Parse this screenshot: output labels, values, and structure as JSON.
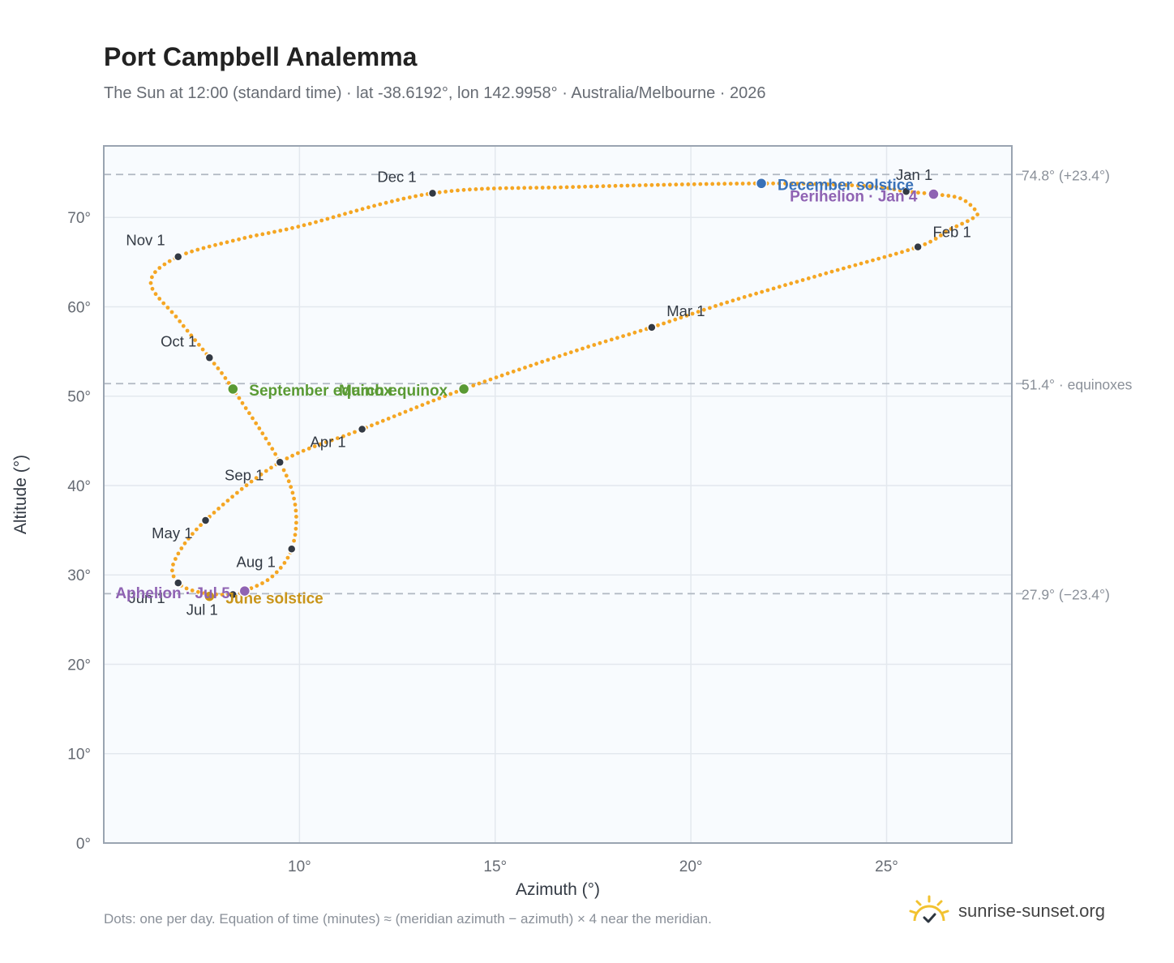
{
  "title": "Port Campbell Analemma",
  "subtitle": "The Sun at 12:00 (standard time) · lat -38.6192°, lon 142.9958° · Australia/Melbourne · 2026",
  "footnote": "Dots: one per day. Equation of time (minutes) ≈ (meridian azimuth − azimuth) × 4 near the meridian.",
  "brand": {
    "name": "sunrise-sunset.org",
    "logo_icon": "sun-check-icon"
  },
  "colors": {
    "curve": "#f5a623",
    "month_marker": "#333a44",
    "equinox": "#5a9a34",
    "june_solstice": "#c9951a",
    "december_solstice": "#3a72b8",
    "perihelion_aphelion": "#8f63b3",
    "reference_line": "#b0b8c2",
    "plot_bg": "#f8fbfe",
    "grid": "#e3e8ee",
    "axis": "#9aa4b1"
  },
  "chart_data": {
    "type": "scatter",
    "xlabel": "Azimuth (°)",
    "ylabel": "Altitude (°)",
    "xlim": [
      5,
      28.2
    ],
    "ylim": [
      0,
      78
    ],
    "xticks": [
      {
        "value": 10,
        "label": "10°"
      },
      {
        "value": 15,
        "label": "15°"
      },
      {
        "value": 20,
        "label": "20°"
      },
      {
        "value": 25,
        "label": "25°"
      }
    ],
    "yticks": [
      {
        "value": 0,
        "label": "0°"
      },
      {
        "value": 10,
        "label": "10°"
      },
      {
        "value": 20,
        "label": "20°"
      },
      {
        "value": 30,
        "label": "30°"
      },
      {
        "value": 40,
        "label": "40°"
      },
      {
        "value": 50,
        "label": "50°"
      },
      {
        "value": 60,
        "label": "60°"
      },
      {
        "value": 70,
        "label": "70°"
      }
    ],
    "grid": true,
    "reference_lines": [
      {
        "y": 74.8,
        "label": "74.8° (+23.4°)"
      },
      {
        "y": 51.4,
        "label": "51.4° · equinoxes"
      },
      {
        "y": 27.9,
        "label": "27.9° (−23.4°)"
      }
    ],
    "month_points": [
      {
        "label": "Jan 1",
        "x": 25.5,
        "y": 72.9
      },
      {
        "label": "Feb 1",
        "x": 25.8,
        "y": 66.7
      },
      {
        "label": "Mar 1",
        "x": 19.0,
        "y": 57.7
      },
      {
        "label": "Apr 1",
        "x": 11.6,
        "y": 46.3
      },
      {
        "label": "May 1",
        "x": 7.6,
        "y": 36.1
      },
      {
        "label": "Jun 1",
        "x": 6.9,
        "y": 29.1
      },
      {
        "label": "Jul 1",
        "x": 8.3,
        "y": 27.8
      },
      {
        "label": "Aug 1",
        "x": 9.8,
        "y": 32.9
      },
      {
        "label": "Sep 1",
        "x": 9.5,
        "y": 42.6
      },
      {
        "label": "Oct 1",
        "x": 7.7,
        "y": 54.3
      },
      {
        "label": "Nov 1",
        "x": 6.9,
        "y": 65.6
      },
      {
        "label": "Dec 1",
        "x": 13.4,
        "y": 72.7
      }
    ],
    "events": [
      {
        "label": "March equinox",
        "x": 14.2,
        "y": 50.8,
        "kind": "equinox"
      },
      {
        "label": "September equinox",
        "x": 8.3,
        "y": 50.8,
        "kind": "equinox"
      },
      {
        "label": "June solstice",
        "x": 7.7,
        "y": 27.6,
        "kind": "june_solstice"
      },
      {
        "label": "December solstice",
        "x": 21.8,
        "y": 73.8,
        "kind": "december_solstice"
      },
      {
        "label": "Perihelion · Jan 4",
        "x": 26.2,
        "y": 72.6,
        "kind": "perihelion_aphelion"
      },
      {
        "label": "Aphelion · Jul 5",
        "x": 8.6,
        "y": 28.2,
        "kind": "perihelion_aphelion"
      }
    ],
    "daily_path_waypoints": [
      [
        25.5,
        72.9
      ],
      [
        26.2,
        72.6
      ],
      [
        26.9,
        72.1
      ],
      [
        27.3,
        70.6
      ],
      [
        27.2,
        69.9
      ],
      [
        26.6,
        68.6
      ],
      [
        25.8,
        66.7
      ],
      [
        23.5,
        63.8
      ],
      [
        21.0,
        60.6
      ],
      [
        19.0,
        57.7
      ],
      [
        17.0,
        55.0
      ],
      [
        14.2,
        50.8
      ],
      [
        11.6,
        46.3
      ],
      [
        9.5,
        42.6
      ],
      [
        7.6,
        36.1
      ],
      [
        6.8,
        31.5
      ],
      [
        6.9,
        29.1
      ],
      [
        7.5,
        28.0
      ],
      [
        8.3,
        27.8
      ],
      [
        8.6,
        28.2
      ],
      [
        9.3,
        29.8
      ],
      [
        9.8,
        32.9
      ],
      [
        9.9,
        37.5
      ],
      [
        9.5,
        42.6
      ],
      [
        8.3,
        50.8
      ],
      [
        7.7,
        54.3
      ],
      [
        6.9,
        58.6
      ],
      [
        6.2,
        62.7
      ],
      [
        6.9,
        65.6
      ],
      [
        8.5,
        67.6
      ],
      [
        10.0,
        69.0
      ],
      [
        13.4,
        72.7
      ],
      [
        17.0,
        73.4
      ],
      [
        21.8,
        73.8
      ],
      [
        24.5,
        73.5
      ],
      [
        25.5,
        72.9
      ]
    ]
  }
}
